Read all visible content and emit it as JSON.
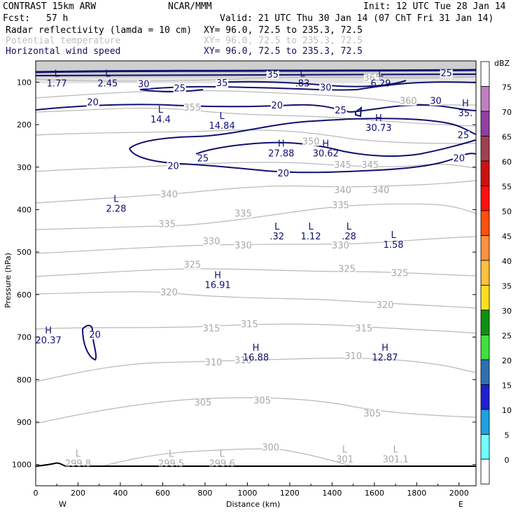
{
  "header": {
    "model": "CONTRAST 15km ARW",
    "org": "NCAR/MMM",
    "init": "Init: 12 UTC Tue 28 Jan 14",
    "fcst_label": "Fcst:",
    "fcst_value": "57 h",
    "valid": "Valid: 21 UTC Thu 30 Jan 14 (07 ChT Fri 31 Jan 14)",
    "fields": [
      {
        "name": "Radar reflectivity (lamda = 10 cm)",
        "xy": "XY=  96.0, 72.5 to 235.3, 72.5"
      },
      {
        "name": "Potential temperature",
        "xy": "XY=  96.0, 72.5 to 235.3, 72.5"
      },
      {
        "name": "Horizontal wind speed",
        "xy": "XY=  96.0, 72.5 to 235.3, 72.5"
      }
    ]
  },
  "chart_data": {
    "type": "cross-section contour",
    "xlabel": "Distance (km)",
    "ylabel": "Pressure (hPa)",
    "xlim": [
      0,
      2080
    ],
    "ylim": [
      1050,
      50
    ],
    "x_ticks": [
      0,
      200,
      400,
      600,
      800,
      1000,
      1200,
      1400,
      1600,
      1800,
      2000
    ],
    "y_ticks": [
      100,
      200,
      300,
      400,
      500,
      600,
      700,
      800,
      900,
      1000
    ],
    "x_end_labels": {
      "left": "W",
      "right": "E"
    },
    "colorbar": {
      "unit": "dBZ",
      "levels": [
        "75",
        "70",
        "65",
        "60",
        "55",
        "50",
        "45",
        "40",
        "35",
        "30",
        "25",
        "20",
        "15",
        "10",
        "5",
        "0"
      ],
      "colors": [
        "#c080c0",
        "#9040a0",
        "#a04050",
        "#d01010",
        "#ff1010",
        "#ff5010",
        "#ff9040",
        "#ffc040",
        "#ffe020",
        "#109010",
        "#40e040",
        "#3070b0",
        "#2020d0",
        "#20a0e0",
        "#70ffff",
        "#ffffff"
      ]
    },
    "theta_labels": [
      {
        "text": "365",
        "x": 1590,
        "p": 95
      },
      {
        "text": "360",
        "x": 1760,
        "p": 150
      },
      {
        "text": "355",
        "x": 740,
        "p": 165
      },
      {
        "text": "350",
        "x": 1300,
        "p": 245
      },
      {
        "text": "345",
        "x": 1450,
        "p": 300
      },
      {
        "text": "345",
        "x": 1580,
        "p": 300
      },
      {
        "text": "340",
        "x": 630,
        "p": 370
      },
      {
        "text": "340",
        "x": 1450,
        "p": 360
      },
      {
        "text": "340",
        "x": 1630,
        "p": 360
      },
      {
        "text": "335",
        "x": 980,
        "p": 415
      },
      {
        "text": "335",
        "x": 620,
        "p": 440
      },
      {
        "text": "335",
        "x": 1440,
        "p": 395
      },
      {
        "text": "330",
        "x": 830,
        "p": 480
      },
      {
        "text": "330",
        "x": 980,
        "p": 490
      },
      {
        "text": "330",
        "x": 1440,
        "p": 490
      },
      {
        "text": "325",
        "x": 740,
        "p": 535
      },
      {
        "text": "325",
        "x": 1470,
        "p": 545
      },
      {
        "text": "325",
        "x": 1720,
        "p": 555
      },
      {
        "text": "320",
        "x": 630,
        "p": 600
      },
      {
        "text": "320",
        "x": 1650,
        "p": 630
      },
      {
        "text": "315",
        "x": 830,
        "p": 685
      },
      {
        "text": "315",
        "x": 1010,
        "p": 675
      },
      {
        "text": "315",
        "x": 1550,
        "p": 685
      },
      {
        "text": "310",
        "x": 840,
        "p": 765
      },
      {
        "text": "310",
        "x": 980,
        "p": 760
      },
      {
        "text": "310",
        "x": 1500,
        "p": 750
      },
      {
        "text": "305",
        "x": 790,
        "p": 860
      },
      {
        "text": "305",
        "x": 1070,
        "p": 855
      },
      {
        "text": "305",
        "x": 1590,
        "p": 885
      },
      {
        "text": "300",
        "x": 1110,
        "p": 965
      }
    ],
    "wind_labels": [
      {
        "text": "30",
        "x": 510,
        "p": 110
      },
      {
        "text": "35",
        "x": 880,
        "p": 108
      },
      {
        "text": "35",
        "x": 1120,
        "p": 88
      },
      {
        "text": "30",
        "x": 1370,
        "p": 118
      },
      {
        "text": "25",
        "x": 680,
        "p": 120
      },
      {
        "text": "25",
        "x": 1940,
        "p": 85
      },
      {
        "text": "20",
        "x": 270,
        "p": 153
      },
      {
        "text": "20",
        "x": 1140,
        "p": 160
      },
      {
        "text": "25",
        "x": 1440,
        "p": 172
      },
      {
        "text": "30",
        "x": 1890,
        "p": 150
      },
      {
        "text": "25",
        "x": 2020,
        "p": 230
      },
      {
        "text": "20",
        "x": 2000,
        "p": 285
      },
      {
        "text": "25",
        "x": 790,
        "p": 285
      },
      {
        "text": "20",
        "x": 650,
        "p": 303
      },
      {
        "text": "20",
        "x": 1170,
        "p": 320
      },
      {
        "text": "20",
        "x": 280,
        "p": 700
      }
    ],
    "hl_markers": [
      {
        "letter": "L",
        "value": "1.77",
        "x": 100,
        "p": 90,
        "color": "blue"
      },
      {
        "letter": "L",
        "value": "2.45",
        "x": 340,
        "p": 90,
        "color": "blue"
      },
      {
        "letter": "L",
        "value": ".83",
        "x": 1260,
        "p": 90,
        "color": "blue"
      },
      {
        "letter": "L",
        "value": "6.29",
        "x": 1630,
        "p": 90,
        "color": "blue"
      },
      {
        "letter": "H",
        "value": "35.",
        "x": 2030,
        "p": 160,
        "color": "blue"
      },
      {
        "letter": "L",
        "value": "14.4",
        "x": 590,
        "p": 175,
        "color": "blue"
      },
      {
        "letter": "L",
        "value": "14.84",
        "x": 880,
        "p": 190,
        "color": "blue"
      },
      {
        "letter": "H",
        "value": "30.73",
        "x": 1620,
        "p": 195,
        "color": "blue"
      },
      {
        "letter": "H",
        "value": "27.88",
        "x": 1160,
        "p": 255,
        "color": "blue"
      },
      {
        "letter": "H",
        "value": "30.62",
        "x": 1370,
        "p": 255,
        "color": "blue"
      },
      {
        "letter": "L",
        "value": "2.28",
        "x": 380,
        "p": 385,
        "color": "blue"
      },
      {
        "letter": "L",
        "value": ".32",
        "x": 1140,
        "p": 450,
        "color": "blue"
      },
      {
        "letter": "L",
        "value": "1.12",
        "x": 1300,
        "p": 450,
        "color": "blue"
      },
      {
        "letter": "L",
        "value": ".28",
        "x": 1480,
        "p": 450,
        "color": "blue"
      },
      {
        "letter": "L",
        "value": "1.58",
        "x": 1690,
        "p": 470,
        "color": "blue"
      },
      {
        "letter": "H",
        "value": "16.91",
        "x": 860,
        "p": 565,
        "color": "blue"
      },
      {
        "letter": "H",
        "value": "20.37",
        "x": 60,
        "p": 695,
        "color": "blue"
      },
      {
        "letter": "H",
        "value": "16.88",
        "x": 1040,
        "p": 735,
        "color": "blue"
      },
      {
        "letter": "H",
        "value": "12.87",
        "x": 1650,
        "p": 735,
        "color": "blue"
      },
      {
        "letter": "L",
        "value": "299.8",
        "x": 200,
        "p": 985,
        "color": "grey"
      },
      {
        "letter": "L",
        "value": "299.5",
        "x": 640,
        "p": 985,
        "color": "grey"
      },
      {
        "letter": "L",
        "value": "299.6",
        "x": 880,
        "p": 985,
        "color": "grey"
      },
      {
        "letter": "L",
        "value": "301",
        "x": 1460,
        "p": 975,
        "color": "grey"
      },
      {
        "letter": "L",
        "value": "301.1",
        "x": 1700,
        "p": 975,
        "color": "grey"
      }
    ]
  }
}
